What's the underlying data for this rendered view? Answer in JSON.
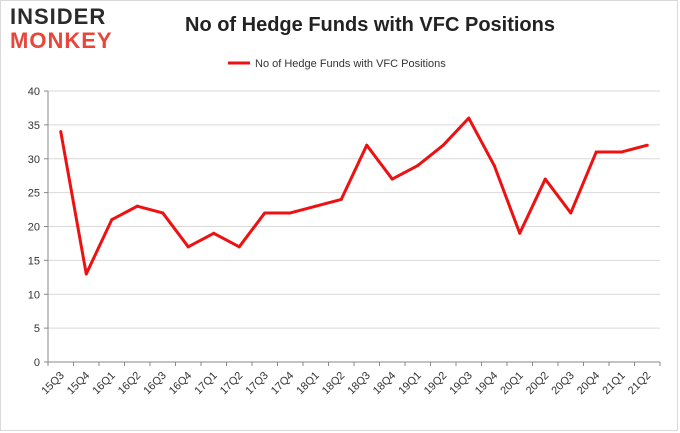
{
  "logo": {
    "top_text": "INSIDER",
    "bottom_text": "MONKEY"
  },
  "chart_data": {
    "type": "line",
    "title": "No of Hedge Funds with VFC Positions",
    "xlabel": "",
    "ylabel": "",
    "categories": [
      "15Q3",
      "15Q4",
      "16Q1",
      "16Q2",
      "16Q3",
      "16Q4",
      "17Q1",
      "17Q2",
      "17Q3",
      "17Q4",
      "18Q1",
      "18Q2",
      "18Q3",
      "18Q4",
      "19Q1",
      "19Q2",
      "19Q3",
      "19Q4",
      "20Q1",
      "20Q2",
      "20Q3",
      "20Q4",
      "21Q1",
      "21Q2"
    ],
    "series": [
      {
        "name": "No of Hedge Funds with VFC Positions",
        "color": "#ee1111",
        "values": [
          34,
          13,
          21,
          23,
          22,
          17,
          19,
          17,
          22,
          22,
          23,
          24,
          32,
          27,
          29,
          32,
          36,
          29,
          19,
          27,
          22,
          31,
          31,
          32
        ]
      }
    ],
    "ylim": [
      0,
      40
    ],
    "yticks": [
      0,
      5,
      10,
      15,
      20,
      25,
      30,
      35,
      40
    ],
    "grid": true,
    "legend": "top-center"
  }
}
